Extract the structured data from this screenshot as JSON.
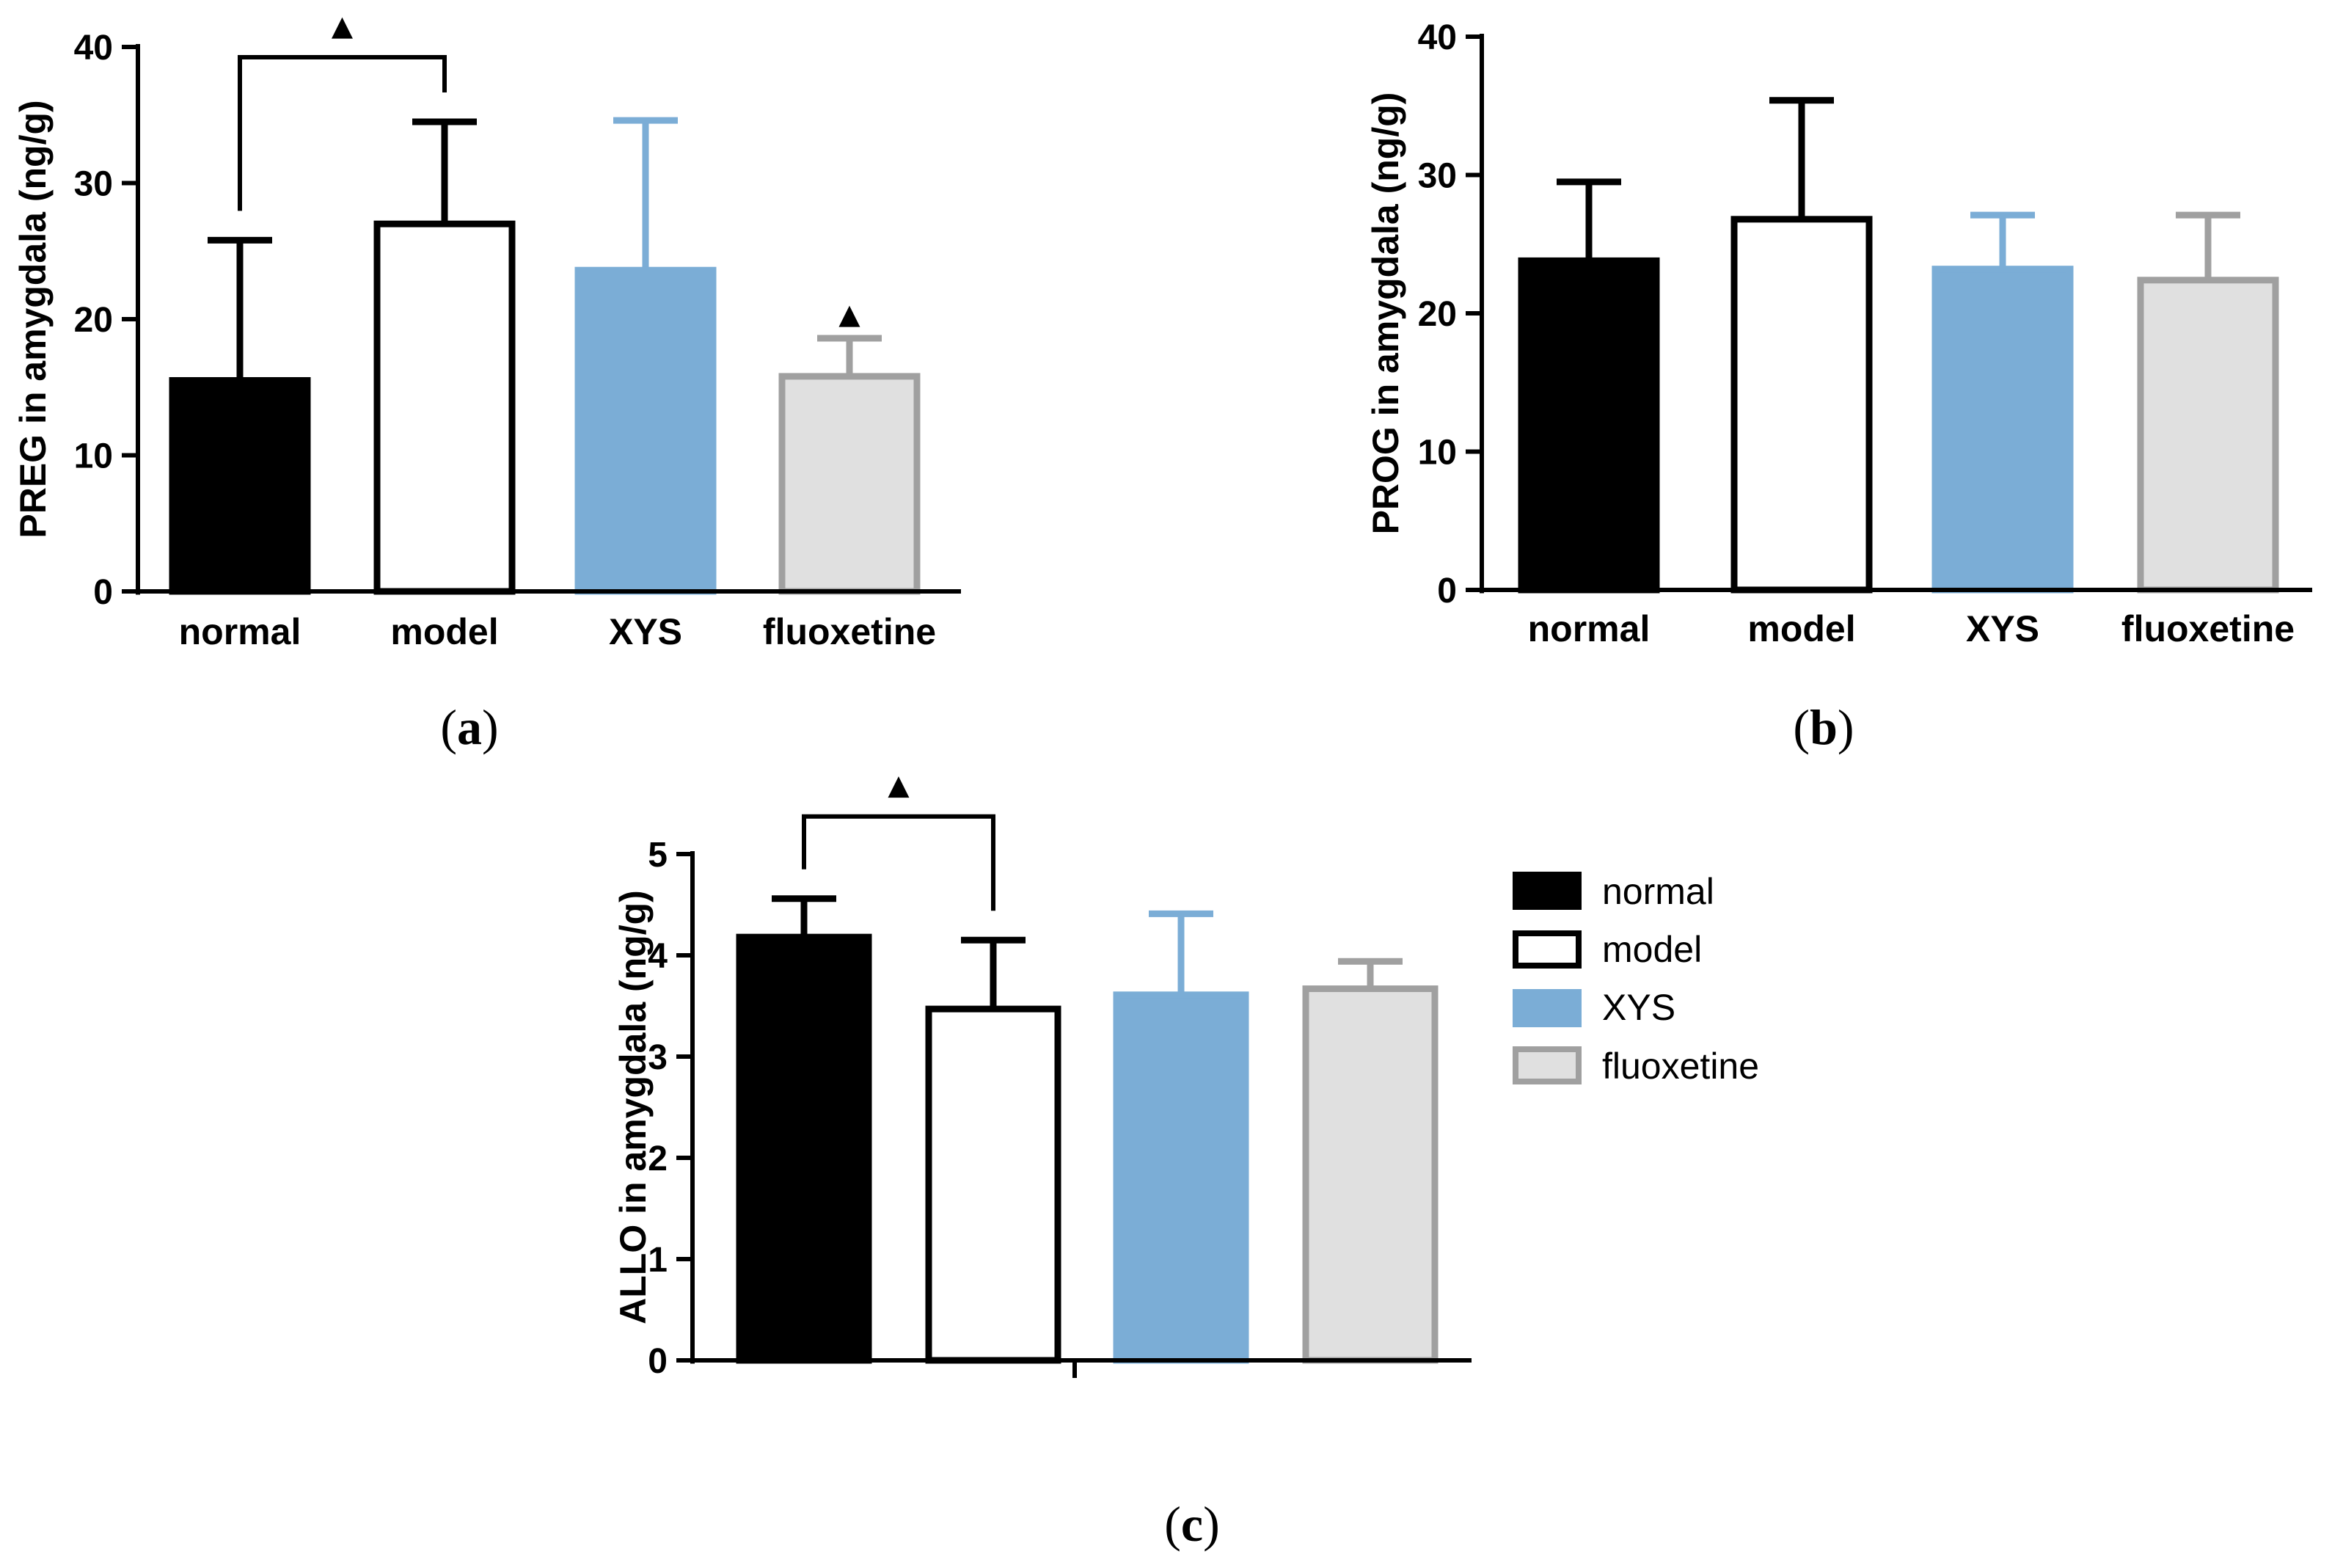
{
  "colors": {
    "normal": {
      "fill": "#000000",
      "stroke": "#000000"
    },
    "model": {
      "fill": "#ffffff",
      "stroke": "#000000"
    },
    "XYS": {
      "fill": "#7badd6",
      "stroke": "#7badd6"
    },
    "fluoxetine": {
      "fill": "#e0e0e0",
      "stroke": "#a0a0a0"
    }
  },
  "significance_marker": "▲",
  "legend": {
    "items": [
      {
        "key": "normal",
        "label": "normal"
      },
      {
        "key": "model",
        "label": "model"
      },
      {
        "key": "XYS",
        "label": "XYS"
      },
      {
        "key": "fluoxetine",
        "label": "fluoxetine"
      }
    ]
  },
  "chart_data": [
    {
      "type": "bar",
      "panel": "(a)",
      "panel_letter": "a",
      "ylabel": "PREG in amygdala (ng/g)",
      "ylim": [
        0,
        40
      ],
      "yticks": [
        0,
        10,
        20,
        30,
        40
      ],
      "categories": [
        "normal",
        "model",
        "XYS",
        "fluoxetine"
      ],
      "values": [
        15.5,
        27.0,
        23.6,
        15.8
      ],
      "errors": [
        10.3,
        7.5,
        11.0,
        2.8
      ],
      "show_category_labels": true,
      "significance": [
        {
          "type": "bracket",
          "from": 0,
          "to": 1
        },
        {
          "type": "marker",
          "bar": 3
        }
      ]
    },
    {
      "type": "bar",
      "panel": "(b)",
      "panel_letter": "b",
      "ylabel": "PROG in amygdala (ng/g)",
      "ylim": [
        0,
        40
      ],
      "yticks": [
        0,
        10,
        20,
        30,
        40
      ],
      "categories": [
        "normal",
        "model",
        "XYS",
        "fluoxetine"
      ],
      "values": [
        23.8,
        26.8,
        23.2,
        22.4
      ],
      "errors": [
        5.7,
        8.6,
        3.9,
        4.7
      ],
      "show_category_labels": true,
      "significance": []
    },
    {
      "type": "bar",
      "panel": "(c)",
      "panel_letter": "c",
      "ylabel": "ALLO in amygdala (ng/g)",
      "ylim": [
        0,
        5
      ],
      "yticks": [
        0,
        1,
        2,
        3,
        4,
        5
      ],
      "categories": [
        "normal",
        "model",
        "XYS",
        "fluoxetine"
      ],
      "values": [
        4.18,
        3.47,
        3.61,
        3.67
      ],
      "errors": [
        0.38,
        0.68,
        0.8,
        0.27
      ],
      "show_category_labels": false,
      "significance": [
        {
          "type": "bracket",
          "from": 0,
          "to": 1
        }
      ]
    }
  ]
}
